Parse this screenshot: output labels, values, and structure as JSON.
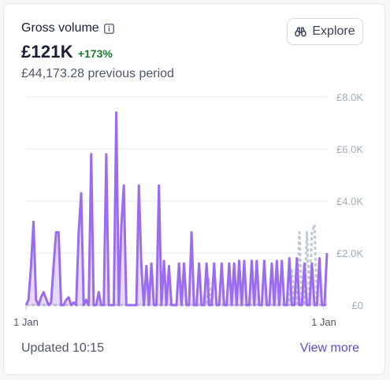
{
  "card": {
    "title": "Gross volume",
    "amount": "£121K",
    "delta": "+173%",
    "previous": "£44,173.28 previous period",
    "explore_label": "Explore",
    "updated": "Updated 10:15",
    "view_more": "View more"
  },
  "colors": {
    "series": "#9c6cf0",
    "previous": "#c1c9d2",
    "delta": "#1b7a2b",
    "link": "#5a4fd0"
  },
  "icons": {
    "info": "info-icon",
    "explore": "binoculars-icon"
  },
  "chart_data": {
    "type": "area",
    "title": "",
    "xlabel": "",
    "ylabel": "",
    "ylim": [
      0,
      8000
    ],
    "yticks": [
      "£8.0K",
      "£6.0K",
      "£4.0K",
      "£2.0K",
      "£0"
    ],
    "ytick_values": [
      8000,
      6000,
      4000,
      2000,
      0
    ],
    "xticks": [
      "1 Jan",
      "1 Jan"
    ],
    "grid": true,
    "series": [
      {
        "values": [
          0,
          200,
          1500,
          3200,
          200,
          0,
          300,
          500,
          250,
          0,
          100,
          1500,
          2800,
          2800,
          0,
          0,
          200,
          300,
          0,
          100,
          0,
          2800,
          4300,
          0,
          200,
          0,
          5800,
          0,
          0,
          500,
          0,
          0,
          5800,
          0,
          0,
          0,
          7400,
          0,
          3000,
          4600,
          0,
          0,
          0,
          0,
          0,
          4600,
          1500,
          0,
          1500,
          0,
          1600,
          0,
          0,
          4600,
          0,
          1700,
          0,
          1500,
          0,
          0,
          0,
          1600,
          0,
          1600,
          0,
          0,
          2800,
          0,
          0,
          1600,
          0,
          0,
          1600,
          0,
          0,
          1600,
          0,
          0,
          1600,
          0,
          0,
          1600,
          0,
          1600,
          0,
          1700,
          0,
          1700,
          0,
          0,
          1700,
          0,
          1700,
          0,
          0,
          1700,
          0,
          0,
          1600,
          0,
          1700,
          0,
          1700,
          0,
          0,
          1800,
          0,
          0,
          1800,
          0,
          0,
          1600,
          0,
          0,
          1600,
          0,
          0,
          1800,
          0,
          0,
          2000
        ]
      },
      {
        "values": [
          0,
          0,
          0,
          0,
          0,
          0,
          0,
          0,
          0,
          0,
          0,
          0,
          0,
          0,
          0,
          0,
          0,
          0,
          0,
          0,
          0,
          0,
          0,
          0,
          0,
          0,
          0,
          0,
          0,
          0,
          0,
          0,
          0,
          0,
          0,
          0,
          0,
          0,
          0,
          0,
          0,
          0,
          0,
          0,
          0,
          0,
          0,
          0,
          0,
          0,
          0,
          0,
          0,
          0,
          0,
          0,
          0,
          0,
          0,
          0,
          0,
          0,
          0,
          0,
          0,
          0,
          0,
          0,
          0,
          0,
          0,
          0,
          0,
          1000,
          0,
          0,
          0,
          0,
          0,
          0,
          0,
          0,
          0,
          0,
          0,
          0,
          0,
          0,
          0,
          0,
          0,
          0,
          0,
          0,
          0,
          0,
          0,
          0,
          0,
          0,
          0,
          0,
          0,
          0,
          0,
          0,
          1400,
          0,
          0,
          2800,
          0,
          0,
          2800,
          0,
          2800,
          3100,
          0,
          0,
          0,
          0,
          0
        ]
      }
    ]
  }
}
